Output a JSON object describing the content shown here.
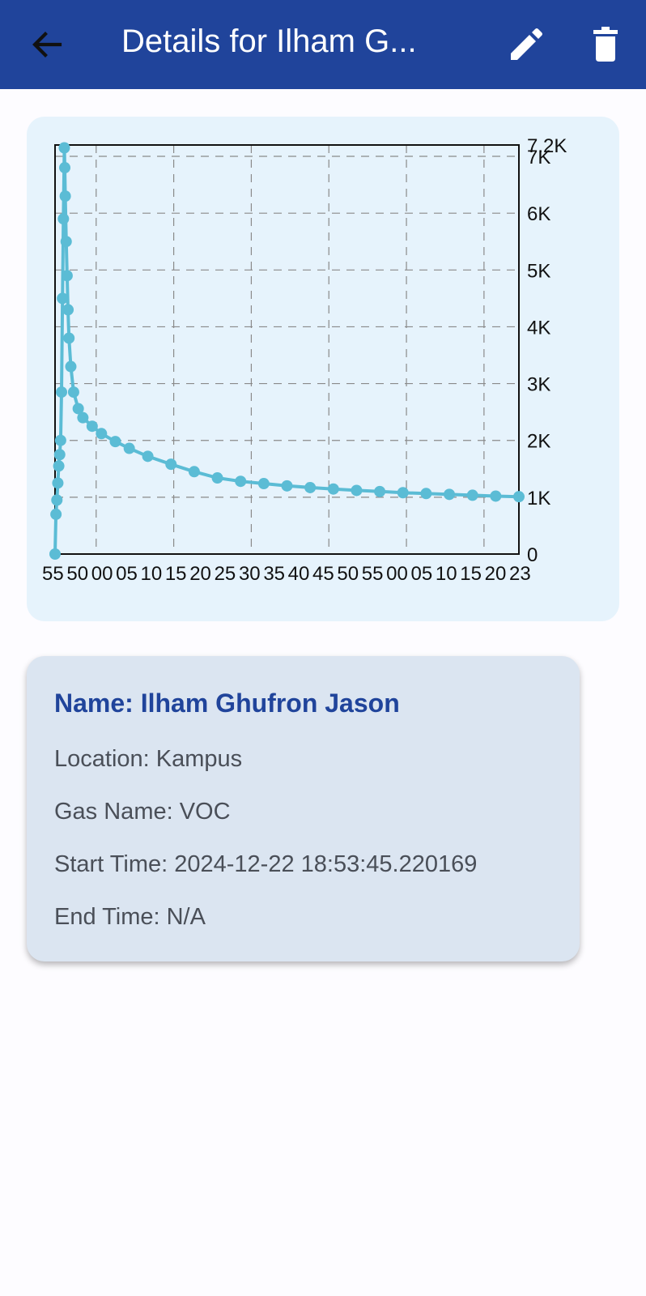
{
  "appbar": {
    "title": "Details for Ilham G...",
    "back_icon": "arrow-back-icon",
    "edit_icon": "pencil-icon",
    "delete_icon": "trash-icon",
    "background": "#20449b"
  },
  "chart_data": {
    "type": "line",
    "title": "",
    "xlabel": "",
    "ylabel": "",
    "y_axis_side": "right",
    "ylim": [
      0,
      7200
    ],
    "yticks": [
      "0",
      "1K",
      "2K",
      "3K",
      "4K",
      "5K",
      "6K",
      "7K",
      "7.2K"
    ],
    "yticks_values": [
      0,
      1000,
      2000,
      3000,
      4000,
      5000,
      6000,
      7000,
      7200
    ],
    "xlim": [
      0,
      1
    ],
    "xtick_labels": [
      "55",
      "50",
      "00",
      "05",
      "10",
      "15",
      "20",
      "25",
      "30",
      "35",
      "40",
      "45",
      "50",
      "55",
      "00",
      "05",
      "10",
      "15",
      "20",
      "23"
    ],
    "grid": true,
    "grid_style": "dashed",
    "series": [
      {
        "color": "#5bbcd5",
        "x": [
          0.0,
          0.002,
          0.004,
          0.006,
          0.008,
          0.01,
          0.012,
          0.014,
          0.016,
          0.018,
          0.02,
          0.021,
          0.022,
          0.024,
          0.026,
          0.028,
          0.03,
          0.034,
          0.04,
          0.05,
          0.06,
          0.08,
          0.1,
          0.13,
          0.16,
          0.2,
          0.25,
          0.3,
          0.35,
          0.4,
          0.45,
          0.5,
          0.55,
          0.6,
          0.65,
          0.7,
          0.75,
          0.8,
          0.85,
          0.9,
          0.95,
          1.0
        ],
        "values": [
          0,
          700,
          950,
          1250,
          1550,
          1750,
          2000,
          2850,
          4500,
          5900,
          7150,
          6800,
          6300,
          5500,
          4900,
          4300,
          3800,
          3300,
          2850,
          2560,
          2400,
          2250,
          2120,
          1980,
          1860,
          1720,
          1580,
          1450,
          1340,
          1280,
          1240,
          1200,
          1170,
          1145,
          1120,
          1100,
          1080,
          1065,
          1050,
          1035,
          1020,
          1010
        ]
      }
    ]
  },
  "info": {
    "name": "Name: Ilham Ghufron Jason",
    "location": "Location: Kampus",
    "gas_name": "Gas Name: VOC",
    "start_time": "Start Time: 2024-12-22 18:53:45.220169",
    "end_time": "End Time: N/A"
  }
}
